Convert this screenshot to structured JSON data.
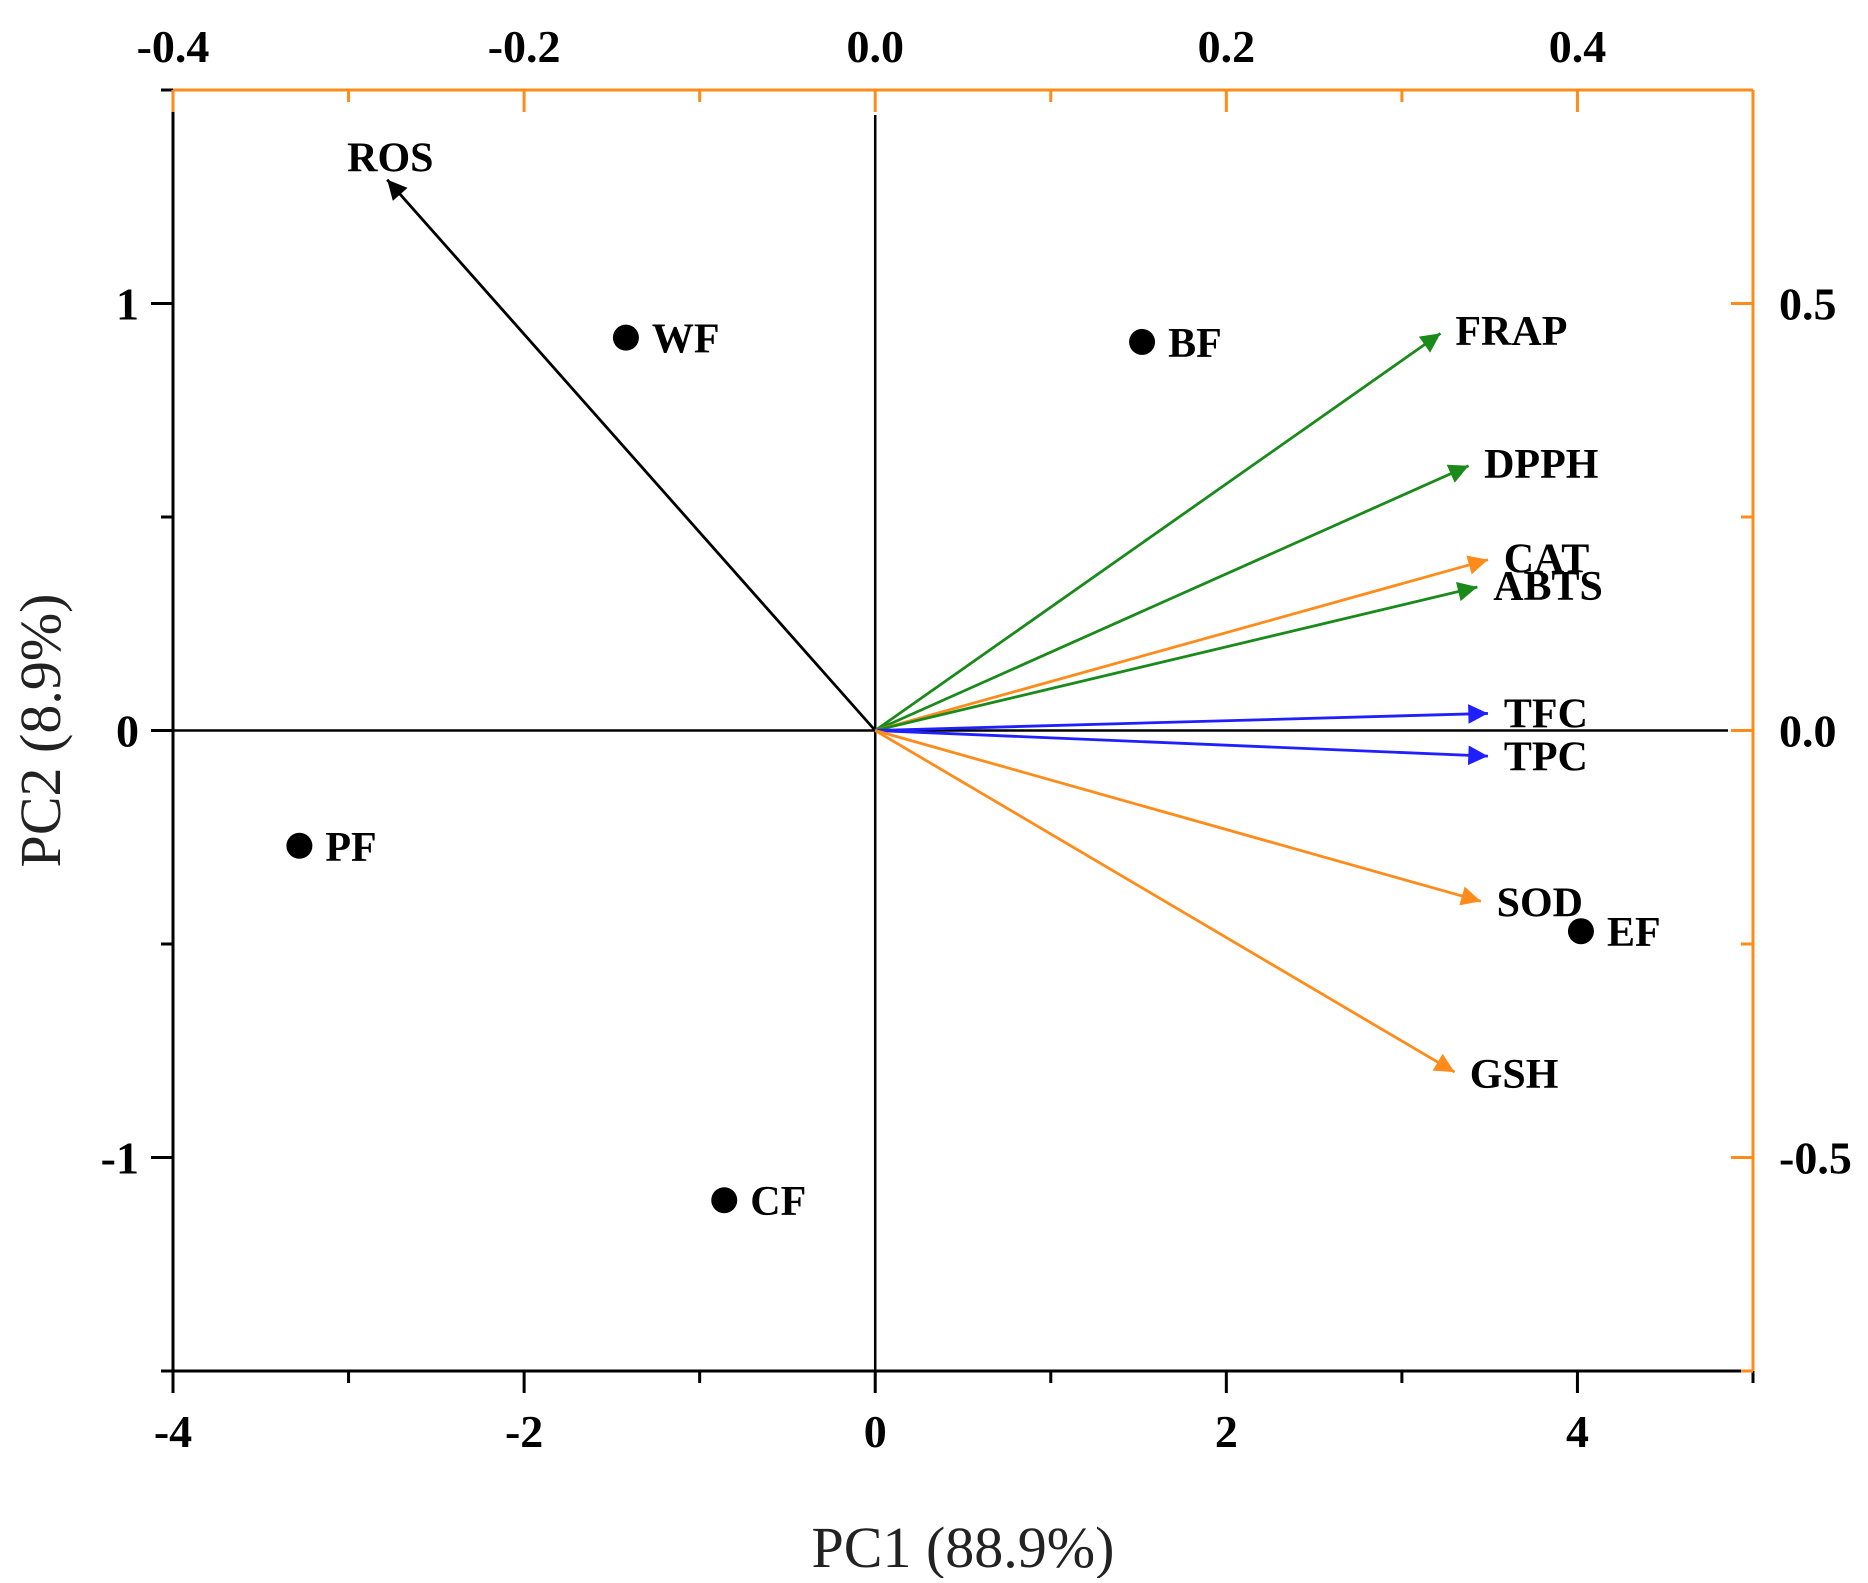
{
  "chart_data": {
    "type": "biplot",
    "xlabel": "PC1 (88.9%)",
    "ylabel": "PC2 (8.9%)",
    "score_axes": {
      "xlim": [
        -4,
        5
      ],
      "ylim": [
        -1.5,
        1.5
      ],
      "x_ticks": [
        -4,
        -2,
        0,
        2,
        4
      ],
      "x_tick_labels": [
        "-4",
        "-2",
        "0",
        "2",
        "4"
      ],
      "y_ticks": [
        -1,
        0,
        1
      ],
      "y_tick_labels": [
        "-1",
        "0",
        "1"
      ]
    },
    "loading_axes": {
      "xlim": [
        -0.4,
        0.5
      ],
      "ylim": [
        -0.75,
        0.75
      ],
      "x_ticks": [
        -0.4,
        -0.2,
        0.0,
        0.2,
        0.4
      ],
      "x_tick_labels": [
        "-0.4",
        "-0.2",
        "0.0",
        "0.2",
        "0.4"
      ],
      "y_ticks": [
        -0.5,
        0.0,
        0.5
      ],
      "y_tick_labels": [
        "-0.5",
        "0.0",
        "0.5"
      ]
    },
    "observations": [
      {
        "name": "WF",
        "x": -1.42,
        "y": 0.92
      },
      {
        "name": "BF",
        "x": 1.52,
        "y": 0.91
      },
      {
        "name": "PF",
        "x": -3.28,
        "y": -0.27
      },
      {
        "name": "CF",
        "x": -0.86,
        "y": -1.1
      },
      {
        "name": "EF",
        "x": 4.02,
        "y": -0.47
      }
    ],
    "loadings": [
      {
        "name": "ROS",
        "x": -0.278,
        "y": 0.645,
        "color": "#000000"
      },
      {
        "name": "FRAP",
        "x": 0.322,
        "y": 0.465,
        "color": "#1a8a1a"
      },
      {
        "name": "DPPH",
        "x": 0.338,
        "y": 0.31,
        "color": "#1a8a1a"
      },
      {
        "name": "CAT",
        "x": 0.349,
        "y": 0.2,
        "color": "#ff8c1a"
      },
      {
        "name": "ABTS",
        "x": 0.343,
        "y": 0.168,
        "color": "#1a8a1a"
      },
      {
        "name": "TFC",
        "x": 0.349,
        "y": 0.02,
        "color": "#1f1fff"
      },
      {
        "name": "TPC",
        "x": 0.349,
        "y": -0.03,
        "color": "#1f1fff"
      },
      {
        "name": "SOD",
        "x": 0.345,
        "y": -0.2,
        "color": "#ff8c1a"
      },
      {
        "name": "GSH",
        "x": 0.33,
        "y": -0.4,
        "color": "#ff8c1a"
      }
    ],
    "colors": {
      "score_axis": "#000000",
      "loading_axis": "#ff8c1a"
    }
  }
}
